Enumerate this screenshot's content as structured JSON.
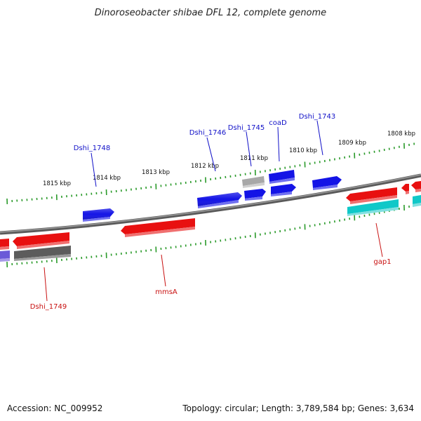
{
  "title": "Dinoroseobacter shibae DFL 12, complete genome",
  "footer": {
    "accession": "Accession: NC_009952",
    "topology": "Topology: circular; Length: 3,789,584 bp; Genes: 3,634"
  },
  "colors": {
    "backbone": "#7a7a7a",
    "tick_major": "#1f8a1f",
    "tick_minor": "#2ea02e",
    "label_top": "#1010c8",
    "label_bottom": "#c81010",
    "gene_blue": "#1414e6",
    "gene_red": "#e81010",
    "gene_cyan": "#10c8c8",
    "gene_gray": "#5c5c5c",
    "gene_lightgray": "#a8a8a8",
    "gene_purple": "#6a5ad8"
  },
  "scale_labels": [
    "1815 kbp",
    "1814 kbp",
    "1813 kbp",
    "1812 kbp",
    "1811 kbp",
    "1810 kbp",
    "1809 kbp",
    "1808 kbp"
  ],
  "top_gene_labels": [
    "Dshi_1748",
    "Dshi_1746",
    "Dshi_1745",
    "coaD",
    "Dshi_1743"
  ],
  "bottom_gene_labels": [
    "Dshi_1749",
    "mmsA",
    "gap1"
  ]
}
